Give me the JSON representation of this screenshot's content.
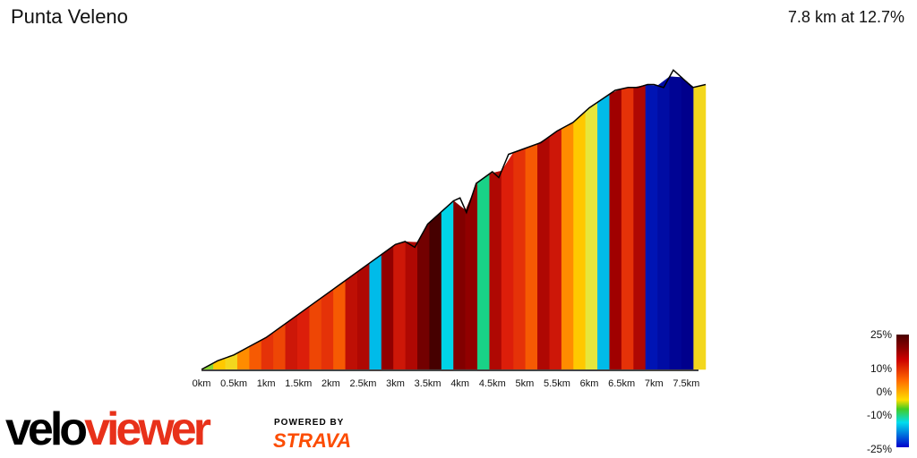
{
  "header": {
    "title": "Punta Veleno",
    "summary": "7.8 km at 12.7%"
  },
  "chart_data": {
    "type": "area",
    "title": "Punta Veleno",
    "x_unit": "km",
    "x_ticks": [
      "0km",
      "0.5km",
      "1km",
      "1.5km",
      "2km",
      "2.5km",
      "3km",
      "3.5km",
      "4km",
      "4.5km",
      "5km",
      "5.5km",
      "6km",
      "6.5km",
      "7km",
      "7.5km"
    ],
    "xlim": [
      0,
      7.8
    ],
    "profile_km": [
      0,
      0.25,
      0.5,
      0.75,
      1.0,
      1.25,
      1.5,
      1.75,
      2.0,
      2.25,
      2.5,
      2.75,
      3.0,
      3.15,
      3.3,
      3.5,
      3.75,
      3.9,
      4.0,
      4.1,
      4.25,
      4.5,
      4.6,
      4.75,
      5.0,
      5.25,
      5.5,
      5.75,
      6.0,
      6.2,
      6.4,
      6.6,
      6.75,
      6.9,
      7.0,
      7.15,
      7.3,
      7.45,
      7.6,
      7.8
    ],
    "profile_rel_height": [
      0.0,
      0.03,
      0.05,
      0.08,
      0.11,
      0.15,
      0.19,
      0.23,
      0.27,
      0.31,
      0.35,
      0.39,
      0.43,
      0.44,
      0.42,
      0.5,
      0.55,
      0.58,
      0.59,
      0.54,
      0.64,
      0.68,
      0.66,
      0.74,
      0.76,
      0.78,
      0.82,
      0.85,
      0.9,
      0.93,
      0.96,
      0.97,
      0.97,
      0.98,
      0.98,
      0.97,
      1.03,
      1.0,
      0.97,
      0.98
    ],
    "segment_gradients_pct": [
      2,
      8,
      6,
      10,
      12,
      14,
      13,
      16,
      15,
      13,
      14,
      12,
      17,
      18,
      -8,
      20,
      16,
      18,
      22,
      25,
      -5,
      21,
      20,
      -2,
      18,
      15,
      14,
      12,
      18,
      16,
      10,
      8,
      4,
      -8,
      19,
      14,
      18,
      -20,
      -22,
      -24,
      -25,
      6
    ],
    "legend": {
      "labels": [
        "25%",
        "10%",
        "0%",
        "-10%",
        "-25%"
      ]
    }
  },
  "footer": {
    "logo_part1": "velo",
    "logo_part2": "viewer",
    "powered_by": "POWERED BY",
    "strava": "STRAVA"
  },
  "colors": {
    "logo_red": "#e8311a",
    "strava_orange": "#fc4c02"
  }
}
